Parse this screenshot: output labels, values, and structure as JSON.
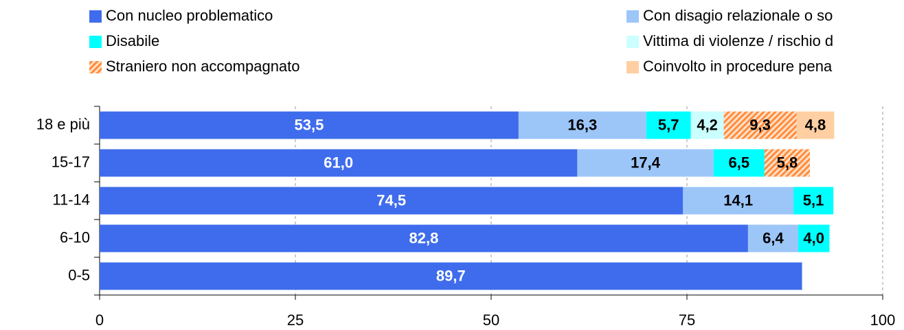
{
  "chart_data": {
    "type": "stacked_bar_horizontal",
    "categories": [
      "18 e più",
      "15-17",
      "11-14",
      "6-10",
      "0-5"
    ],
    "series": [
      {
        "name": "Con nucleo problematico",
        "color": "#3f6cec",
        "label_color": "#ffffff",
        "values": [
          53.5,
          61.0,
          74.5,
          82.8,
          89.7
        ],
        "value_labels": [
          "53,5",
          "61,0",
          "74,5",
          "82,8",
          "89,7"
        ]
      },
      {
        "name": "Con disagio relazionale o so",
        "color": "#9cc6f8",
        "values": [
          16.3,
          17.4,
          14.1,
          6.4,
          null
        ],
        "value_labels": [
          "16,3",
          "17,4",
          "14,1",
          "6,4",
          null
        ]
      },
      {
        "name": "Disabile",
        "color": "#00ffff",
        "values": [
          5.7,
          6.5,
          5.1,
          4.0,
          null
        ],
        "value_labels": [
          "5,7",
          "6,5",
          "5,1",
          "4,0",
          null
        ]
      },
      {
        "name": "Vittima di violenze / rischio d",
        "color": "#ccffff",
        "values": [
          4.2,
          null,
          null,
          null,
          null
        ],
        "value_labels": [
          "4,2",
          null,
          null,
          null,
          null
        ]
      },
      {
        "name": "Straniero non accompagnato",
        "color": "#ff8c3c",
        "pattern": "hatch",
        "values": [
          9.3,
          5.8,
          null,
          null,
          null
        ],
        "value_labels": [
          "9,3",
          "5,8",
          null,
          null,
          null
        ]
      },
      {
        "name": "Coinvolto in procedure pena",
        "color": "#ffc896",
        "pattern": "dots",
        "values": [
          4.8,
          null,
          null,
          null,
          null
        ],
        "value_labels": [
          "4,8",
          null,
          null,
          null,
          null
        ]
      }
    ],
    "xlim": [
      0,
      100
    ],
    "xticks": [
      0,
      25,
      50,
      75,
      100
    ],
    "grid": true
  }
}
